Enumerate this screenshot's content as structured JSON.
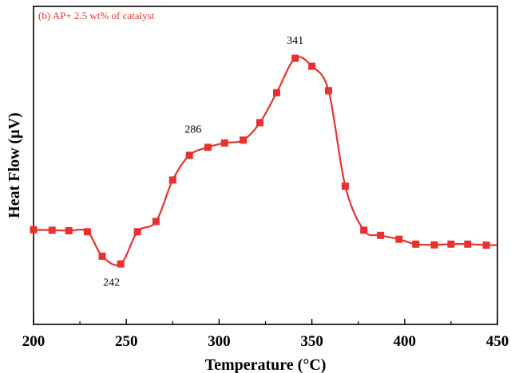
{
  "chart_data": {
    "type": "line",
    "title": "",
    "xlabel": "Temperature (°C)",
    "ylabel": "Heat Flow (µV)",
    "xlim": [
      200,
      450
    ],
    "ylim": [
      0,
      1
    ],
    "xticks": [
      200,
      250,
      300,
      350,
      400,
      450
    ],
    "yticks_shown": false,
    "legend": {
      "text": "(b) AP+ 2.5 wt% of catalyst",
      "placement": "top-left"
    },
    "series_color": "#e8312f",
    "series": [
      {
        "name": "(b) AP+ 2.5 wt% of catalyst",
        "marker": "square",
        "x": [
          200,
          210,
          219,
          229,
          237,
          247,
          256,
          266,
          275,
          284,
          294,
          303,
          313,
          322,
          331,
          341,
          350,
          359,
          368,
          378,
          387,
          397,
          406,
          416,
          425,
          434,
          444
        ],
        "y": [
          0.278,
          0.276,
          0.274,
          0.27,
          0.175,
          0.145,
          0.27,
          0.31,
          0.471,
          0.567,
          0.598,
          0.615,
          0.626,
          0.694,
          0.81,
          0.944,
          0.913,
          0.818,
          0.447,
          0.276,
          0.256,
          0.241,
          0.222,
          0.219,
          0.222,
          0.222,
          0.218
        ]
      }
    ],
    "annotations": [
      {
        "text": "242",
        "x": 242,
        "y": 0.06
      },
      {
        "text": "286",
        "x": 286,
        "y": 0.655
      },
      {
        "text": "341",
        "x": 341,
        "y": 1.0
      }
    ]
  }
}
